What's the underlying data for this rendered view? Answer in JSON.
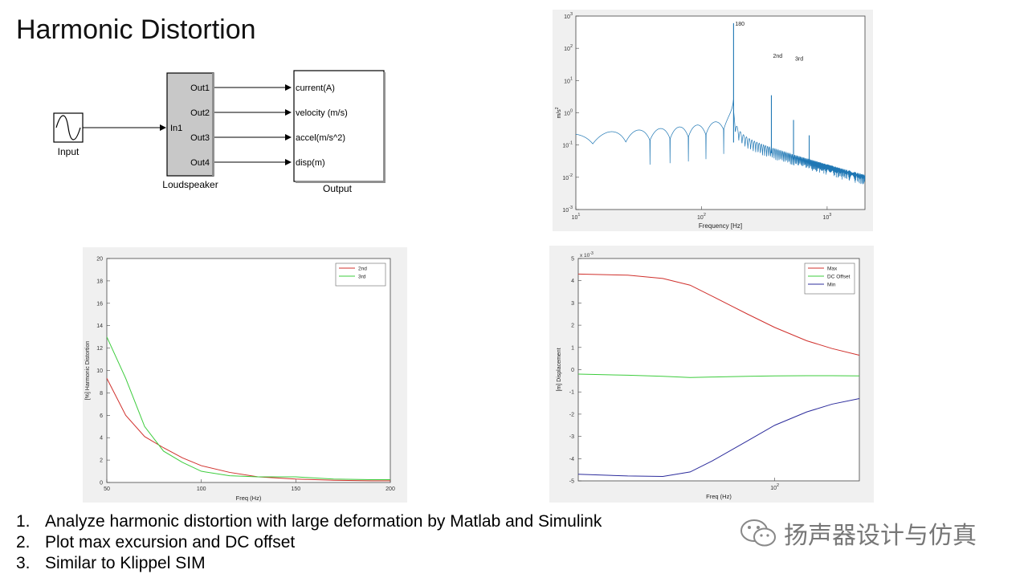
{
  "title": "Harmonic Distortion",
  "simulink": {
    "input_label": "Input",
    "block_label": "Loudspeaker",
    "output_label": "Output",
    "in_port": "In1",
    "out_ports": [
      "Out1",
      "Out2",
      "Out3",
      "Out4"
    ],
    "signals": [
      "current(A)",
      "velocity (m/s)",
      "accel(m/s^2)",
      "disp(m)"
    ]
  },
  "bullets": [
    {
      "num": "1.",
      "text": "Analyze harmonic distortion with large deformation by Matlab and Simulink"
    },
    {
      "num": "2.",
      "text": "Plot max excursion and DC offset"
    },
    {
      "num": "3.",
      "text": "Similar to Klippel SIM"
    }
  ],
  "watermark": "扬声器设计与仿真",
  "colors": {
    "red": "#d0302c",
    "green": "#3ccc3c",
    "blue": "#2c2c9c",
    "spectrum": "#1f77b4"
  },
  "chart_data": [
    {
      "type": "line",
      "scale": "log-log",
      "xlabel": "Frequency [Hz]",
      "ylabel": "m/s^2",
      "xlim": [
        10,
        2000
      ],
      "ylim": [
        0.001,
        1000
      ],
      "x_ticks": [
        "10^1",
        "10^2",
        "10^3"
      ],
      "y_ticks": [
        "10^-3",
        "10^-2",
        "10^-1",
        "10^0",
        "10^1",
        "10^2",
        "10^3"
      ],
      "annotations": [
        {
          "text": "180",
          "x": 180,
          "y": 600
        },
        {
          "text": "2nd",
          "x": 360,
          "y": 60
        },
        {
          "text": "3rd",
          "x": 540,
          "y": 50
        }
      ],
      "peaks": [
        {
          "x": 180,
          "y": 600
        },
        {
          "x": 360,
          "y": 3.5
        },
        {
          "x": 540,
          "y": 0.6
        },
        {
          "x": 720,
          "y": 0.2
        }
      ],
      "series": [
        {
          "color": "#1f77b4"
        }
      ]
    },
    {
      "type": "line",
      "xlabel": "Freq (Hz)",
      "ylabel": "[%] Harmonic Distortion",
      "xlim": [
        50,
        200
      ],
      "ylim": [
        0,
        20
      ],
      "x_ticks": [
        50,
        100,
        150,
        200
      ],
      "y_ticks": [
        0,
        2,
        4,
        6,
        8,
        10,
        12,
        14,
        16,
        18,
        20
      ],
      "legend": "top-right",
      "series": [
        {
          "name": "2nd",
          "color": "#d0302c",
          "x": [
            50,
            60,
            70,
            80,
            90,
            100,
            115,
            130,
            150,
            170,
            190,
            200
          ],
          "y": [
            9.3,
            6.0,
            4.1,
            3.1,
            2.2,
            1.5,
            0.9,
            0.5,
            0.3,
            0.2,
            0.15,
            0.15
          ]
        },
        {
          "name": "3rd",
          "color": "#3ccc3c",
          "x": [
            50,
            60,
            70,
            80,
            90,
            100,
            115,
            130,
            150,
            170,
            190,
            200
          ],
          "y": [
            13.0,
            9.3,
            5.0,
            2.8,
            1.8,
            1.0,
            0.6,
            0.5,
            0.5,
            0.3,
            0.25,
            0.25
          ]
        }
      ]
    },
    {
      "type": "line",
      "scale": "log-x",
      "xlabel": "Freq (Hz)",
      "ylabel": "[m] Displacement",
      "y_multiplier": "x 10^-3",
      "xlim": [
        20,
        200
      ],
      "ylim": [
        -5,
        5
      ],
      "x_ticks": [
        "10^2"
      ],
      "y_ticks": [
        -5,
        -4,
        -3,
        -2,
        -1,
        0,
        1,
        2,
        3,
        4,
        5
      ],
      "legend": "top-right",
      "series": [
        {
          "name": "Max",
          "color": "#d0302c",
          "x": [
            20,
            30,
            40,
            50,
            60,
            80,
            100,
            130,
            160,
            200
          ],
          "y": [
            4.3,
            4.25,
            4.1,
            3.8,
            3.3,
            2.5,
            1.9,
            1.3,
            0.95,
            0.65
          ]
        },
        {
          "name": "DC Offset",
          "color": "#3ccc3c",
          "x": [
            20,
            30,
            40,
            50,
            60,
            80,
            100,
            130,
            160,
            200
          ],
          "y": [
            -0.2,
            -0.25,
            -0.3,
            -0.35,
            -0.33,
            -0.3,
            -0.28,
            -0.27,
            -0.27,
            -0.28
          ]
        },
        {
          "name": "Min",
          "color": "#2c2c9c",
          "x": [
            20,
            30,
            40,
            50,
            60,
            80,
            100,
            130,
            160,
            200
          ],
          "y": [
            -4.7,
            -4.78,
            -4.8,
            -4.6,
            -4.1,
            -3.2,
            -2.5,
            -1.9,
            -1.55,
            -1.3
          ]
        }
      ]
    }
  ]
}
